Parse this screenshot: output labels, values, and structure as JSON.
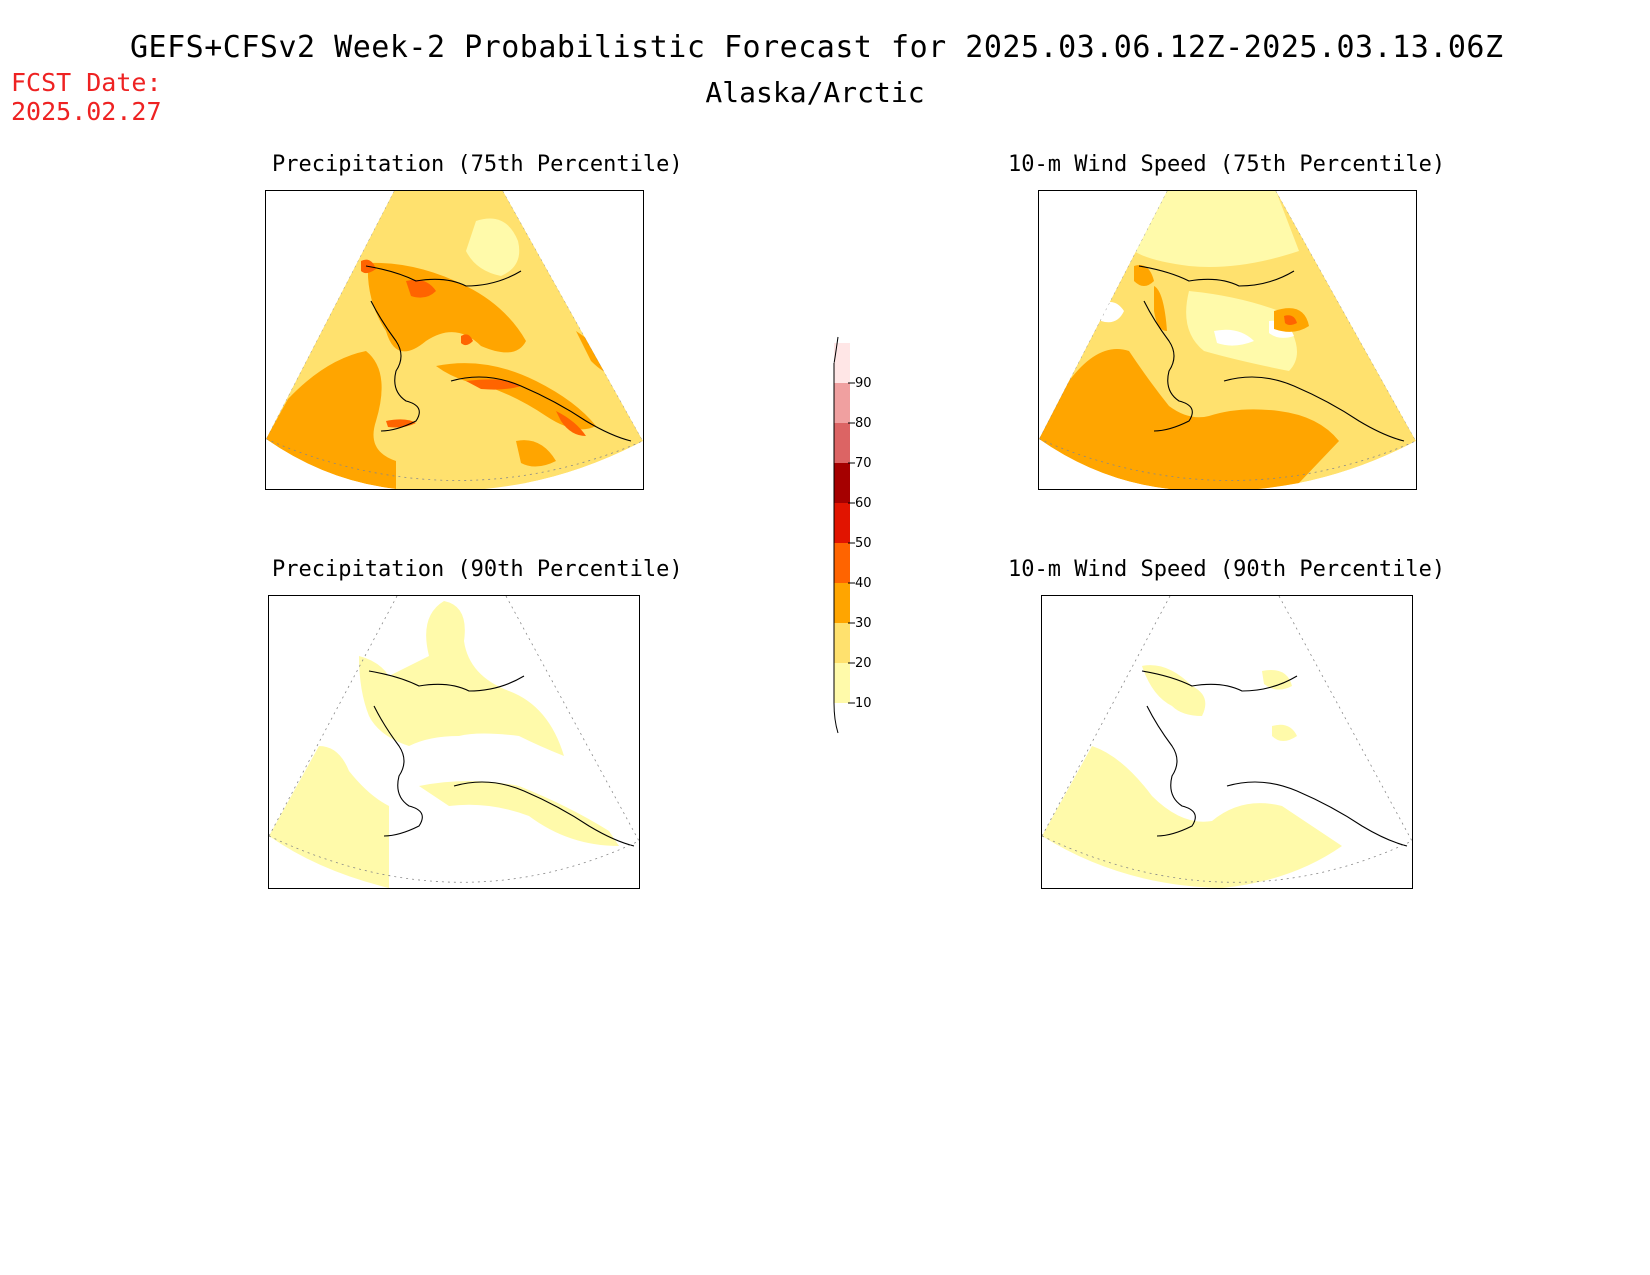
{
  "header": {
    "title": "GEFS+CFSv2 Week-2 Probabilistic Forecast for 2025.03.06.12Z-2025.03.13.06Z",
    "subtitle": "Alaska/Arctic",
    "fcst_label": "FCST Date:",
    "fcst_date": "2025.02.27"
  },
  "panels": {
    "precip75": {
      "title": "Precipitation (75th Percentile)"
    },
    "wind75": {
      "title": "10-m Wind Speed (75th Percentile)"
    },
    "precip90": {
      "title": "Precipitation (90th Percentile)"
    },
    "wind90": {
      "title": "10-m Wind Speed (90th Percentile)"
    }
  },
  "colorbar": {
    "levels": [
      "10",
      "20",
      "30",
      "40",
      "50",
      "60",
      "70",
      "80",
      "90"
    ],
    "colors": [
      "#fffaaa",
      "#ffe16e",
      "#ffa500",
      "#ff6400",
      "#e11400",
      "#a50000",
      "#dc6464",
      "#f0a0a0",
      "#ffe6e6"
    ]
  }
}
